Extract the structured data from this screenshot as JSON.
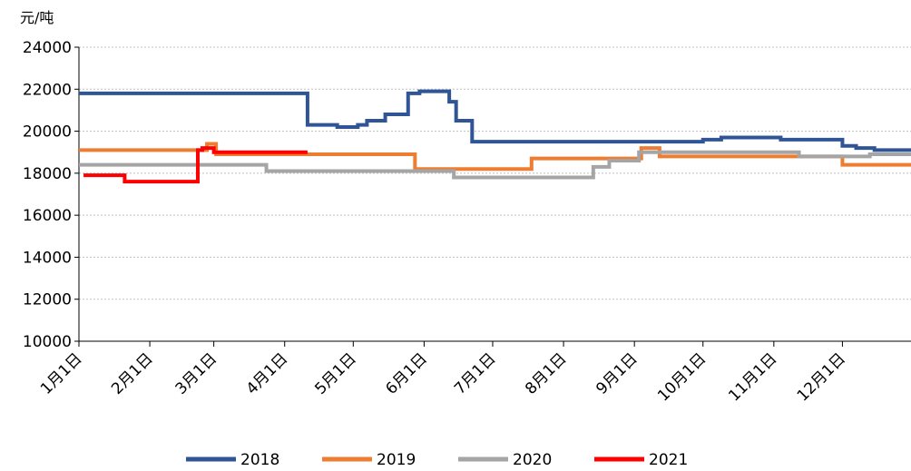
{
  "chart_data": {
    "type": "line",
    "y_label": "元/吨",
    "xlim": [
      0,
      364
    ],
    "ylim": [
      10000,
      24000
    ],
    "yticks": [
      10000,
      12000,
      14000,
      16000,
      18000,
      20000,
      22000,
      24000
    ],
    "xticks": [
      {
        "value": 0,
        "label": "1月1日"
      },
      {
        "value": 31,
        "label": "2月1日"
      },
      {
        "value": 59,
        "label": "3月1日"
      },
      {
        "value": 90,
        "label": "4月1日"
      },
      {
        "value": 120,
        "label": "5月1日"
      },
      {
        "value": 151,
        "label": "6月1日"
      },
      {
        "value": 181,
        "label": "7月1日"
      },
      {
        "value": 212,
        "label": "8月1日"
      },
      {
        "value": 243,
        "label": "9月1日"
      },
      {
        "value": 273,
        "label": "10月1日"
      },
      {
        "value": 304,
        "label": "11月1日"
      },
      {
        "value": 334,
        "label": "12月1日"
      }
    ],
    "grid": true,
    "legend": "bottom",
    "series": [
      {
        "name": "2018",
        "color": "#2f5597",
        "x": [
          0,
          100,
          113,
          122,
          126,
          134,
          144,
          149,
          162,
          165,
          172,
          273,
          281,
          307,
          334,
          340,
          348,
          364
        ],
        "values": [
          21800,
          20300,
          20200,
          20300,
          20500,
          20800,
          21800,
          21900,
          21400,
          20500,
          19500,
          19600,
          19700,
          19600,
          19300,
          19200,
          19100,
          19100
        ]
      },
      {
        "name": "2019",
        "color": "#ed7d31",
        "x": [
          0,
          56,
          60,
          147,
          198,
          246,
          254,
          315,
          334,
          364
        ],
        "values": [
          19100,
          19400,
          18900,
          18200,
          18700,
          19200,
          18800,
          18800,
          18400,
          18400
        ]
      },
      {
        "name": "2020",
        "color": "#a5a5a5",
        "x": [
          0,
          82,
          164,
          225,
          232,
          245,
          315,
          346,
          364
        ],
        "values": [
          18400,
          18100,
          17800,
          18300,
          18600,
          19000,
          18800,
          18900,
          18900
        ]
      },
      {
        "name": "2021",
        "color": "#ff0000",
        "x": [
          2,
          20,
          52,
          54,
          59,
          100
        ],
        "values": [
          17900,
          17600,
          19100,
          19200,
          19000,
          19000
        ]
      }
    ]
  }
}
